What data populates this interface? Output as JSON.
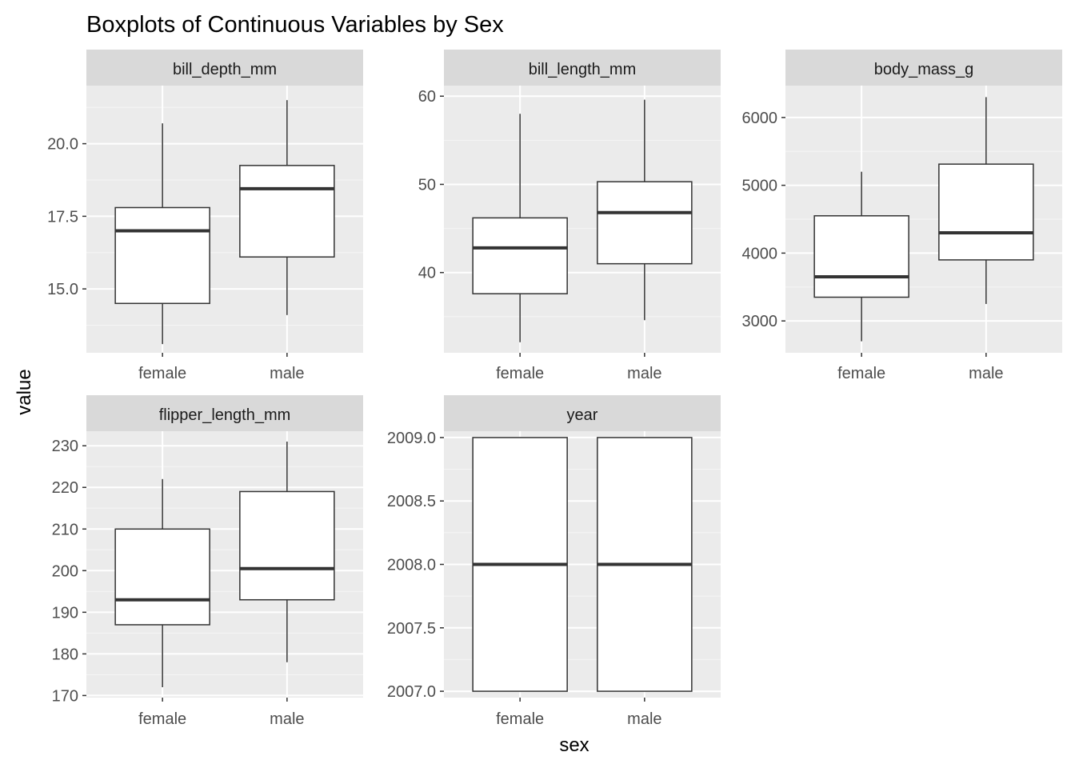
{
  "chart_data": {
    "type": "boxplot",
    "title": "Boxplots of Continuous Variables by Sex",
    "xlabel": "sex",
    "ylabel": "value",
    "categories": [
      "female",
      "male"
    ],
    "colors": {
      "panel_bg": "#EBEBEB",
      "strip_bg": "#D9D9D9",
      "grid_major": "#FFFFFF",
      "grid_minor": "#F5F5F5",
      "box_fill": "#FFFFFF",
      "box_line": "#333333"
    },
    "facets": [
      {
        "name": "bill_depth_mm",
        "ylim": [
          12.8,
          22.0
        ],
        "yticks": [
          15.0,
          17.5,
          20.0
        ],
        "ytick_labels": [
          "15.0",
          "17.5",
          "20.0"
        ],
        "minor_ticks": [
          13.75,
          16.25,
          18.75,
          21.25
        ],
        "boxes": [
          {
            "category": "female",
            "min": 13.1,
            "q1": 14.5,
            "median": 17.0,
            "q3": 17.8,
            "max": 20.7
          },
          {
            "category": "male",
            "min": 14.1,
            "q1": 16.1,
            "median": 18.45,
            "q3": 19.25,
            "max": 21.5
          }
        ]
      },
      {
        "name": "bill_length_mm",
        "ylim": [
          30.9,
          61.2
        ],
        "yticks": [
          40,
          50,
          60
        ],
        "ytick_labels": [
          "40",
          "50",
          "60"
        ],
        "minor_ticks": [
          35,
          45,
          55
        ],
        "boxes": [
          {
            "category": "female",
            "min": 32.1,
            "q1": 37.6,
            "median": 42.8,
            "q3": 46.2,
            "max": 58.0
          },
          {
            "category": "male",
            "min": 34.6,
            "q1": 41.0,
            "median": 46.8,
            "q3": 50.3,
            "max": 59.6
          }
        ]
      },
      {
        "name": "body_mass_g",
        "ylim": [
          2530,
          6470
        ],
        "yticks": [
          3000,
          4000,
          5000,
          6000
        ],
        "ytick_labels": [
          "3000",
          "4000",
          "5000",
          "6000"
        ],
        "minor_ticks": [
          3500,
          4500,
          5500
        ],
        "boxes": [
          {
            "category": "female",
            "min": 2700,
            "q1": 3350,
            "median": 3650,
            "q3": 4550,
            "max": 5200
          },
          {
            "category": "male",
            "min": 3250,
            "q1": 3900,
            "median": 4300,
            "q3": 5312,
            "max": 6300
          }
        ]
      },
      {
        "name": "flipper_length_mm",
        "ylim": [
          169.5,
          233.5
        ],
        "yticks": [
          170,
          180,
          190,
          200,
          210,
          220,
          230
        ],
        "ytick_labels": [
          "170",
          "180",
          "190",
          "200",
          "210",
          "220",
          "230"
        ],
        "minor_ticks": [
          175,
          185,
          195,
          205,
          215,
          225
        ],
        "boxes": [
          {
            "category": "female",
            "min": 172,
            "q1": 187,
            "median": 193,
            "q3": 210,
            "max": 222
          },
          {
            "category": "male",
            "min": 178,
            "q1": 193,
            "median": 200.5,
            "q3": 219,
            "max": 231
          }
        ]
      },
      {
        "name": "year",
        "ylim": [
          2006.95,
          2009.05
        ],
        "yticks": [
          2007.0,
          2007.5,
          2008.0,
          2008.5,
          2009.0
        ],
        "ytick_labels": [
          "2007.0",
          "2007.5",
          "2008.0",
          "2008.5",
          "2009.0"
        ],
        "minor_ticks": [
          2007.25,
          2007.75,
          2008.25,
          2008.75
        ],
        "boxes": [
          {
            "category": "female",
            "min": 2007,
            "q1": 2007,
            "median": 2008,
            "q3": 2009,
            "max": 2009
          },
          {
            "category": "male",
            "min": 2007,
            "q1": 2007,
            "median": 2008,
            "q3": 2009,
            "max": 2009
          }
        ]
      }
    ]
  }
}
